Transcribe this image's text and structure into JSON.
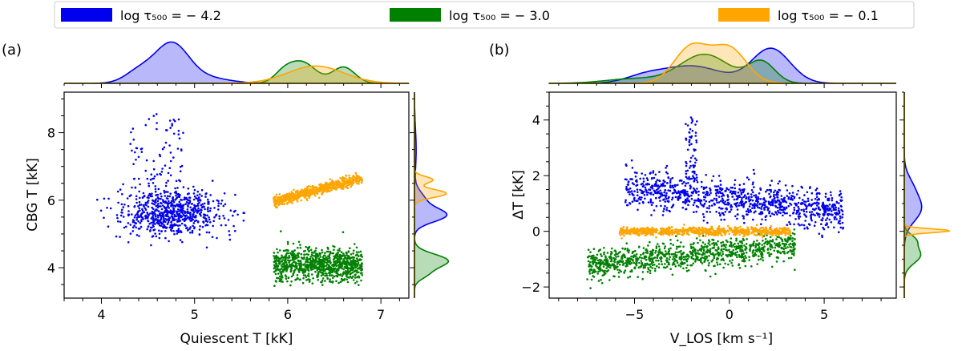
{
  "legend": {
    "placement": "top",
    "entries": [
      {
        "label": "log τ₅₀₀ = − 4.2",
        "color": "#0000ee"
      },
      {
        "label": "log τ₅₀₀ = − 3.0",
        "color": "#008000"
      },
      {
        "label": "log τ₅₀₀ = − 0.1",
        "color": "#ffa500"
      }
    ]
  },
  "panels": [
    {
      "tag": "(a)"
    },
    {
      "tag": "(b)"
    }
  ],
  "chart_data": [
    {
      "type": "scatter",
      "panel": "(a)",
      "xlabel": "Quiescent T [kK]",
      "ylabel": "CBG T [kK]",
      "xlim": [
        3.6,
        7.3
      ],
      "ylim": [
        3.1,
        9.2
      ],
      "xticks": [
        "4",
        "5",
        "6",
        "7"
      ],
      "yticks": [
        "4",
        "6",
        "8"
      ],
      "grid": false,
      "series": [
        {
          "name": "log τ₅₀₀ = − 4.2",
          "color": "#0000ee",
          "clusters": [
            {
              "x_range": [
                3.95,
                5.55
              ],
              "y_center": 5.65,
              "y_spread": 0.35,
              "n": 700,
              "x_peak": 4.75
            },
            {
              "x_range": [
                4.3,
                4.9
              ],
              "y_center": 6.8,
              "y_spread": 0.9,
              "n": 90
            }
          ]
        },
        {
          "name": "log τ₅₀₀ = − 3.0",
          "color": "#008000",
          "clusters": [
            {
              "x_range": [
                5.85,
                6.8
              ],
              "y_center": 4.1,
              "y_spread": 0.25,
              "n": 900
            }
          ]
        },
        {
          "name": "log τ₅₀₀ = − 0.1",
          "color": "#ffa500",
          "clusters": [
            {
              "x_range": [
                5.85,
                6.8
              ],
              "y_start": 5.95,
              "y_end": 6.65,
              "y_spread": 0.08,
              "n": 600
            }
          ]
        }
      ],
      "top_kde": [
        {
          "color": "#0000ee",
          "peaks": [
            {
              "x": 4.75,
              "h": 1.0,
              "w": 0.18
            },
            {
              "x": 4.4,
              "h": 0.3,
              "w": 0.15
            },
            {
              "x": 5.1,
              "h": 0.15,
              "w": 0.25
            }
          ]
        },
        {
          "color": "#008000",
          "peaks": [
            {
              "x": 6.15,
              "h": 0.55,
              "w": 0.15
            },
            {
              "x": 6.6,
              "h": 0.42,
              "w": 0.12
            },
            {
              "x": 5.95,
              "h": 0.2,
              "w": 0.1
            }
          ]
        },
        {
          "color": "#ffa500",
          "peaks": [
            {
              "x": 6.3,
              "h": 0.45,
              "w": 0.3
            }
          ]
        }
      ],
      "right_kde": [
        {
          "color": "#0000ee",
          "peaks": [
            {
              "y": 5.55,
              "h": 0.9,
              "w": 0.2
            },
            {
              "y": 6.0,
              "h": 0.3,
              "w": 0.25
            },
            {
              "y": 7.5,
              "h": 0.05,
              "w": 0.6
            }
          ]
        },
        {
          "color": "#008000",
          "peaks": [
            {
              "y": 4.2,
              "h": 1.0,
              "w": 0.2
            },
            {
              "y": 3.8,
              "h": 0.3,
              "w": 0.15
            }
          ]
        },
        {
          "color": "#ffa500",
          "peaks": [
            {
              "y": 6.2,
              "h": 0.95,
              "w": 0.12
            },
            {
              "y": 6.6,
              "h": 0.55,
              "w": 0.1
            }
          ]
        }
      ]
    },
    {
      "type": "scatter",
      "panel": "(b)",
      "xlabel": "V_LOS [km s⁻¹]",
      "ylabel": "ΔT [kK]",
      "xlim": [
        -9.5,
        8.8
      ],
      "ylim": [
        -2.4,
        5.0
      ],
      "xticks": [
        "−5",
        "0",
        "5"
      ],
      "yticks": [
        "−2",
        "0",
        "2",
        "4"
      ],
      "grid": false,
      "series": [
        {
          "name": "log τ₅₀₀ = − 4.2",
          "color": "#0000ee",
          "clusters": [
            {
              "x_range": [
                -5.5,
                6.0
              ],
              "y_start": 1.6,
              "y_end": 0.7,
              "y_spread": 0.35,
              "n": 1000
            },
            {
              "x_range": [
                -2.3,
                -1.7
              ],
              "y_center": 2.8,
              "y_spread": 0.8,
              "n": 60
            }
          ]
        },
        {
          "name": "log τ₅₀₀ = − 3.0",
          "color": "#008000",
          "clusters": [
            {
              "x_range": [
                -7.5,
                3.5
              ],
              "y_start": -1.2,
              "y_end": -0.5,
              "y_spread": 0.25,
              "n": 1000
            }
          ]
        },
        {
          "name": "log τ₅₀₀ = − 0.1",
          "color": "#ffa500",
          "clusters": [
            {
              "x_range": [
                -5.8,
                3.2
              ],
              "y_center": 0.0,
              "y_spread": 0.07,
              "n": 800
            }
          ]
        }
      ],
      "top_kde": [
        {
          "color": "#0000ee",
          "peaks": [
            {
              "x": 2.2,
              "h": 0.9,
              "w": 1.0
            },
            {
              "x": -2.0,
              "h": 0.45,
              "w": 1.6
            },
            {
              "x": -4.5,
              "h": 0.15,
              "w": 1.0
            }
          ]
        },
        {
          "color": "#008000",
          "peaks": [
            {
              "x": -1.3,
              "h": 0.75,
              "w": 1.3
            },
            {
              "x": 1.7,
              "h": 0.55,
              "w": 0.7
            },
            {
              "x": -5.0,
              "h": 0.12,
              "w": 1.5
            }
          ]
        },
        {
          "color": "#ffa500",
          "peaks": [
            {
              "x": -2.0,
              "h": 0.95,
              "w": 0.9
            },
            {
              "x": 0.0,
              "h": 0.9,
              "w": 0.9
            }
          ]
        }
      ],
      "right_kde": [
        {
          "color": "#0000ee",
          "peaks": [
            {
              "y": 0.8,
              "h": 0.35,
              "w": 0.45
            },
            {
              "y": 1.6,
              "h": 0.15,
              "w": 0.4
            }
          ]
        },
        {
          "color": "#008000",
          "peaks": [
            {
              "y": -0.85,
              "h": 0.35,
              "w": 0.3
            },
            {
              "y": -0.3,
              "h": 0.2,
              "w": 0.2
            }
          ]
        },
        {
          "color": "#ffa500",
          "peaks": [
            {
              "y": 0.02,
              "h": 1.0,
              "w": 0.07
            }
          ]
        }
      ]
    }
  ]
}
